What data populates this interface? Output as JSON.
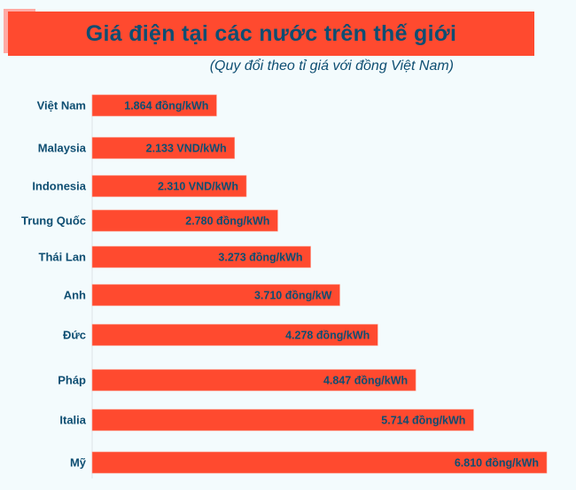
{
  "chart_data": {
    "type": "bar",
    "orientation": "horizontal",
    "title": "Giá điện tại các nước trên thế giới",
    "subtitle": "(Quy đổi theo tỉ giá với đồng Việt Nam)",
    "categories": [
      "Việt Nam",
      "Malaysia",
      "Indonesia",
      "Trung Quốc",
      "Thái Lan",
      "Anh",
      "Đức",
      "Pháp",
      "Italia",
      "Mỹ"
    ],
    "values": [
      1864,
      2133,
      2310,
      2780,
      3273,
      3710,
      4278,
      4847,
      5714,
      6810
    ],
    "data_labels": [
      "1.864 đồng/kWh",
      "2.133 VND/kWh",
      "2.310 VND/kWh",
      "2.780 đồng/kWh",
      "3.273 đồng/kWh",
      "3.710 đồng/kW",
      "4.278 đồng/kWh",
      "4.847 đồng/kWh",
      "5.714 đồng/kWh",
      "6.810 đồng/kWh"
    ],
    "xlim": [
      0,
      6810
    ],
    "grid": false,
    "colors": {
      "bar": "#ff4a2f",
      "text": "#0e4e72",
      "background": "#f3fbfd"
    }
  }
}
